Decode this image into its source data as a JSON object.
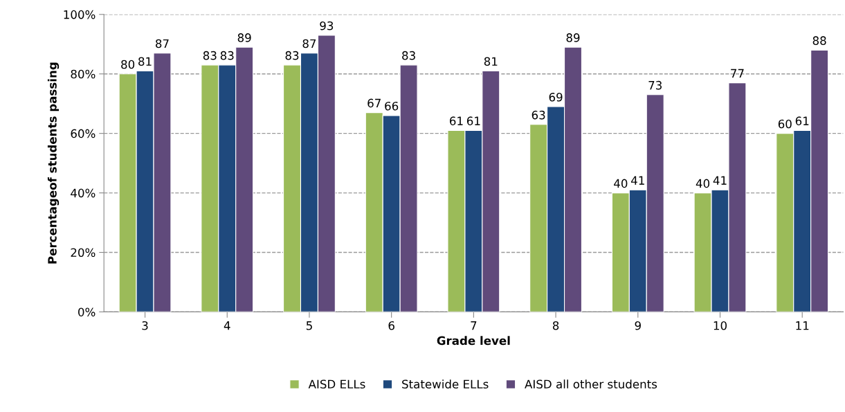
{
  "chart_data": {
    "type": "bar",
    "xlabel": "Grade level",
    "ylabel": "Percentageof students passing",
    "categories": [
      "3",
      "4",
      "5",
      "6",
      "7",
      "8",
      "9",
      "10",
      "11"
    ],
    "series": [
      {
        "name": "AISD ELLs",
        "color": "#9bbb59",
        "values": [
          80,
          83,
          83,
          67,
          61,
          63,
          40,
          40,
          60
        ]
      },
      {
        "name": "Statewide ELLs",
        "color": "#1f497d",
        "values": [
          81,
          83,
          87,
          66,
          61,
          69,
          41,
          41,
          61
        ]
      },
      {
        "name": "AISD all other students",
        "color": "#604a7b",
        "values": [
          87,
          89,
          93,
          83,
          81,
          89,
          73,
          77,
          88
        ]
      }
    ],
    "ylim": [
      0,
      100
    ],
    "yticks": [
      {
        "value": 0,
        "label": "0%"
      },
      {
        "value": 20,
        "label": "20%"
      },
      {
        "value": 40,
        "label": "40%"
      },
      {
        "value": 60,
        "label": "60%"
      },
      {
        "value": 80,
        "label": "80%"
      },
      {
        "value": 100,
        "label": "100%"
      }
    ],
    "grid": "y",
    "legend": "bottom",
    "data_labels": true
  }
}
